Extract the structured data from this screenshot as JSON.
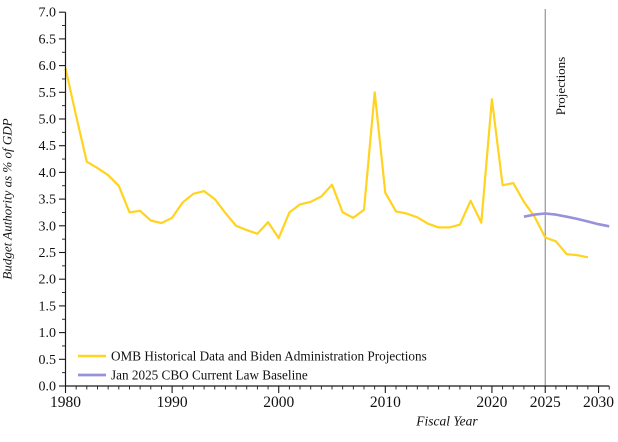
{
  "chart_data": {
    "type": "line",
    "title": "",
    "xlabel": "Fiscal Year",
    "ylabel": "Budget Authority as % of GDP",
    "xlim": [
      1980,
      2031
    ],
    "ylim": [
      0.0,
      7.0
    ],
    "grid": false,
    "legend_position": "lower-left",
    "axis_color": "#1a1a1a",
    "x_major_ticks": [
      {
        "label": "1980",
        "value": 1980
      },
      {
        "label": "1990",
        "value": 1990
      },
      {
        "label": "2000",
        "value": 2000
      },
      {
        "label": "2010",
        "value": 2010
      },
      {
        "label": "2020",
        "value": 2020
      },
      {
        "label": "2025",
        "value": 2025
      },
      {
        "label": "2030",
        "value": 2030
      }
    ],
    "x_minor_step": 1,
    "y_major_ticks": [
      {
        "label": "0.0",
        "value": 0.0
      },
      {
        "label": "0.5",
        "value": 0.5
      },
      {
        "label": "1.0",
        "value": 1.0
      },
      {
        "label": "1.5",
        "value": 1.5
      },
      {
        "label": "2.0",
        "value": 2.0
      },
      {
        "label": "2.5",
        "value": 2.5
      },
      {
        "label": "3.0",
        "value": 3.0
      },
      {
        "label": "3.5",
        "value": 3.5
      },
      {
        "label": "4.0",
        "value": 4.0
      },
      {
        "label": "4.5",
        "value": 4.5
      },
      {
        "label": "5.0",
        "value": 5.0
      },
      {
        "label": "5.5",
        "value": 5.5
      },
      {
        "label": "6.0",
        "value": 6.0
      },
      {
        "label": "6.5",
        "value": 6.5
      },
      {
        "label": "7.0",
        "value": 7.0
      }
    ],
    "y_minor_step": 0.25,
    "projection_divider": {
      "label": "Projections",
      "x": 2025,
      "label_color": "#3E6EA8",
      "line_color": "#8C8C8C"
    },
    "series": [
      {
        "id": "omb",
        "name": "OMB Historical Data and Biden Administration Projections",
        "color": "#FFD320",
        "x": [
          1980,
          1981,
          1982,
          1983,
          1984,
          1985,
          1986,
          1987,
          1988,
          1989,
          1990,
          1991,
          1992,
          1993,
          1994,
          1995,
          1996,
          1997,
          1998,
          1999,
          2000,
          2001,
          2002,
          2003,
          2004,
          2005,
          2006,
          2007,
          2008,
          2009,
          2010,
          2011,
          2012,
          2013,
          2014,
          2015,
          2016,
          2017,
          2018,
          2019,
          2020,
          2021,
          2022,
          2023,
          2024,
          2025,
          2026,
          2027,
          2028,
          2029
        ],
        "values": [
          5.95,
          5.05,
          4.2,
          4.08,
          3.95,
          3.75,
          3.25,
          3.28,
          3.1,
          3.05,
          3.15,
          3.44,
          3.6,
          3.65,
          3.5,
          3.24,
          3.0,
          2.92,
          2.85,
          3.07,
          2.77,
          3.25,
          3.4,
          3.45,
          3.55,
          3.77,
          3.25,
          3.15,
          3.3,
          5.5,
          3.62,
          3.27,
          3.23,
          3.16,
          3.04,
          2.97,
          2.97,
          3.02,
          3.47,
          3.06,
          5.37,
          3.76,
          3.8,
          3.45,
          3.17,
          2.78,
          2.71,
          2.47,
          2.45,
          2.41
        ]
      },
      {
        "id": "cbo",
        "name": "Jan 2025 CBO Current Law Baseline",
        "color": "#9792D9",
        "x": [
          2023,
          2024,
          2025,
          2026,
          2027,
          2028,
          2029,
          2030,
          2031
        ],
        "values": [
          3.17,
          3.21,
          3.23,
          3.21,
          3.17,
          3.13,
          3.08,
          3.03,
          2.99
        ]
      }
    ]
  }
}
